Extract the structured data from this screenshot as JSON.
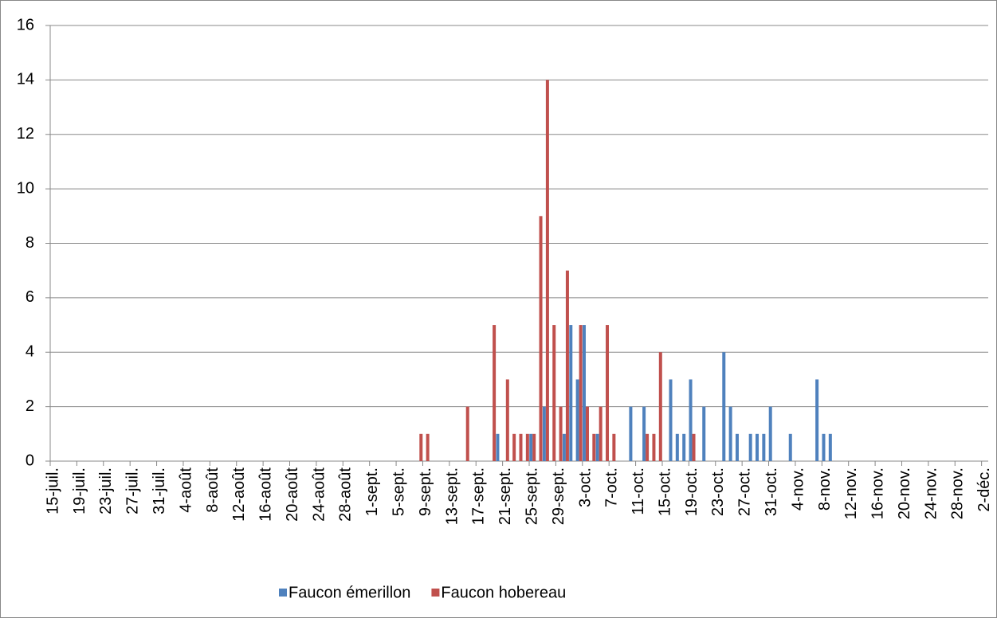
{
  "chart_data": {
    "type": "bar",
    "categories": [
      "15-juil.",
      null,
      null,
      null,
      "19-juil.",
      null,
      null,
      null,
      "23-juil.",
      null,
      null,
      null,
      "27-juil.",
      null,
      null,
      null,
      "31-juil.",
      null,
      null,
      null,
      "4-août",
      null,
      null,
      null,
      "8-août",
      null,
      null,
      null,
      "12-août",
      null,
      null,
      null,
      "16-août",
      null,
      null,
      null,
      "20-août",
      null,
      null,
      null,
      "24-août",
      null,
      null,
      null,
      "28-août",
      null,
      null,
      null,
      "1-sept.",
      null,
      null,
      null,
      "5-sept.",
      null,
      null,
      null,
      "9-sept.",
      null,
      null,
      null,
      "13-sept.",
      null,
      null,
      null,
      "17-sept.",
      null,
      null,
      null,
      "21-sept.",
      null,
      null,
      null,
      "25-sept.",
      null,
      null,
      null,
      "29-sept.",
      null,
      null,
      null,
      "3-oct.",
      null,
      null,
      null,
      "7-oct.",
      null,
      null,
      null,
      "11-oct.",
      null,
      null,
      null,
      "15-oct.",
      null,
      null,
      null,
      "19-oct.",
      null,
      null,
      null,
      "23-oct.",
      null,
      null,
      null,
      "27-oct.",
      null,
      null,
      null,
      "31-oct.",
      null,
      null,
      null,
      "4-nov.",
      null,
      null,
      null,
      "8-nov.",
      null,
      null,
      null,
      "12-nov.",
      null,
      null,
      null,
      "16-nov.",
      null,
      null,
      null,
      "20-nov.",
      null,
      null,
      null,
      "24-nov.",
      null,
      null,
      null,
      "28-nov.",
      null,
      null,
      null,
      "2-déc."
    ],
    "series": [
      {
        "name": "Faucon émerillon",
        "color": "#4f81bd",
        "values": [
          null,
          null,
          null,
          null,
          null,
          null,
          null,
          null,
          null,
          null,
          null,
          null,
          null,
          null,
          null,
          null,
          null,
          null,
          null,
          null,
          null,
          null,
          null,
          null,
          null,
          null,
          null,
          null,
          null,
          null,
          null,
          null,
          null,
          null,
          null,
          null,
          null,
          null,
          null,
          null,
          null,
          null,
          null,
          null,
          null,
          null,
          null,
          null,
          null,
          null,
          null,
          null,
          null,
          null,
          null,
          null,
          null,
          null,
          null,
          null,
          null,
          null,
          null,
          null,
          null,
          null,
          null,
          1,
          null,
          null,
          null,
          null,
          1,
          null,
          2,
          null,
          null,
          1,
          5,
          3,
          5,
          null,
          1,
          null,
          null,
          null,
          null,
          2,
          null,
          2,
          null,
          null,
          null,
          3,
          1,
          1,
          3,
          null,
          2,
          null,
          null,
          4,
          2,
          1,
          null,
          1,
          1,
          1,
          2,
          null,
          null,
          1,
          null,
          null,
          null,
          3,
          1,
          1,
          null,
          null,
          null,
          null,
          null,
          null,
          null,
          null,
          null,
          null,
          null,
          null,
          null,
          null,
          null,
          null,
          null,
          null,
          null,
          null,
          null,
          null,
          null
        ]
      },
      {
        "name": "Faucon hobereau",
        "color": "#c0504d",
        "values": [
          null,
          null,
          null,
          null,
          null,
          null,
          null,
          null,
          null,
          null,
          null,
          null,
          null,
          null,
          null,
          null,
          null,
          null,
          null,
          null,
          null,
          null,
          null,
          null,
          null,
          null,
          null,
          null,
          null,
          null,
          null,
          null,
          null,
          null,
          null,
          null,
          null,
          null,
          null,
          null,
          null,
          null,
          null,
          null,
          null,
          null,
          null,
          null,
          null,
          null,
          null,
          null,
          null,
          null,
          null,
          1,
          1,
          null,
          null,
          null,
          null,
          null,
          2,
          null,
          null,
          null,
          5,
          null,
          3,
          1,
          1,
          1,
          1,
          9,
          14,
          5,
          2,
          7,
          null,
          5,
          2,
          1,
          2,
          5,
          1,
          null,
          null,
          null,
          null,
          1,
          1,
          4,
          null,
          null,
          null,
          null,
          1,
          null,
          null,
          null,
          null,
          null,
          null,
          null,
          null,
          null,
          null,
          null,
          null,
          null,
          null,
          null,
          null,
          null,
          null,
          null,
          null,
          null,
          null,
          null,
          null,
          null,
          null,
          null,
          null,
          null,
          null,
          null,
          null,
          null,
          null,
          null,
          null,
          null,
          null,
          null,
          null,
          null,
          null,
          null,
          null
        ]
      }
    ],
    "ylim": [
      0,
      16
    ],
    "yticks": [
      0,
      2,
      4,
      6,
      8,
      10,
      12,
      14,
      16
    ],
    "grid": true,
    "legend": "bottom"
  }
}
